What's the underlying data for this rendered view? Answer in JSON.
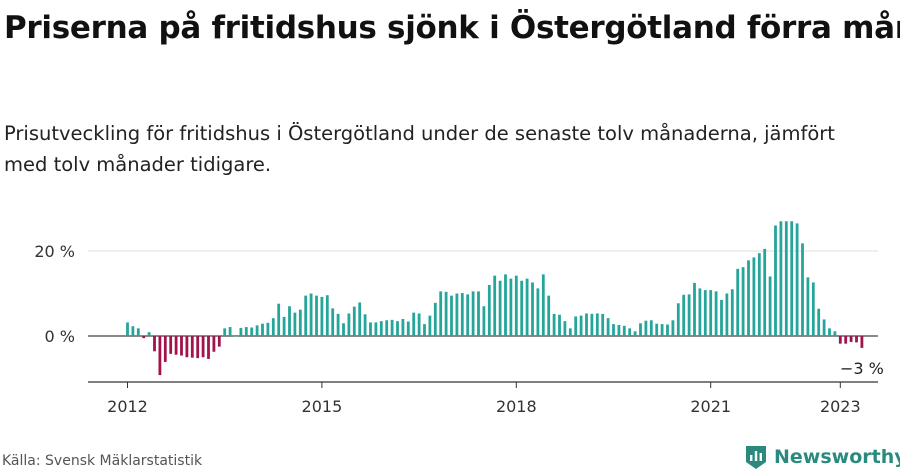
{
  "title": "Priserna på fritidshus sjönk i Östergötland förra månaden",
  "subtitle": "Prisutveckling för fritidshus i Östergötland under de senaste tolv månaderna, jämfört med tolv månader tidigare.",
  "source": "Källa: Svensk Mäklarstatistik",
  "brand": {
    "name": "Newsworthy",
    "icon": "newsworthy-logo-icon"
  },
  "colors": {
    "positive": "#26a69a",
    "negative": "#a0134b",
    "grid": "#dddddd",
    "axis": "#333333",
    "brand": "#2a8a7e"
  },
  "chart_data": {
    "type": "bar",
    "x_start": "2012-01",
    "x_tick_labels": [
      "2012",
      "2015",
      "2018",
      "2021",
      "2023"
    ],
    "y_tick_labels": [
      "0 %",
      "20 %"
    ],
    "ylim": [
      -10,
      28
    ],
    "grid": true,
    "last_label": "−3 %",
    "values": [
      3.2,
      2.3,
      1.8,
      -0.5,
      0.9,
      -3.6,
      -9.2,
      -6.1,
      -4.2,
      -4.4,
      -4.6,
      -5.0,
      -5.1,
      -5.2,
      -5.0,
      -5.4,
      -3.7,
      -2.5,
      1.8,
      2.1,
      0.0,
      1.9,
      2.1,
      2.0,
      2.5,
      2.9,
      3.1,
      4.2,
      7.6,
      4.5,
      7.0,
      5.5,
      6.2,
      9.5,
      10.0,
      9.5,
      9.2,
      9.6,
      6.5,
      5.2,
      3.0,
      5.3,
      6.9,
      7.9,
      5.1,
      3.2,
      3.2,
      3.5,
      3.7,
      3.8,
      3.5,
      4.0,
      3.4,
      5.5,
      5.3,
      2.8,
      4.8,
      7.8,
      10.5,
      10.4,
      9.5,
      10.0,
      10.1,
      9.8,
      10.5,
      10.5,
      7.0,
      12.0,
      14.2,
      13.0,
      14.5,
      13.5,
      14.2,
      13.0,
      13.5,
      12.6,
      11.2,
      14.5,
      9.5,
      5.2,
      5.0,
      3.5,
      1.8,
      4.6,
      4.8,
      5.3,
      5.2,
      5.3,
      5.2,
      4.2,
      2.8,
      2.6,
      2.4,
      1.8,
      1.1,
      3.0,
      3.6,
      3.7,
      2.9,
      2.8,
      2.7,
      3.7,
      7.7,
      9.7,
      9.8,
      12.5,
      11.2,
      10.8,
      10.8,
      10.5,
      8.5,
      10.0,
      11.0,
      15.8,
      16.2,
      17.8,
      18.5,
      19.5,
      20.5,
      14.0,
      26.0,
      27.0,
      27.0,
      27.0,
      26.5,
      21.8,
      13.8,
      12.6,
      6.4,
      3.9,
      1.8,
      1.1,
      -1.8,
      -1.8,
      -1.4,
      -1.5,
      -2.8
    ]
  }
}
